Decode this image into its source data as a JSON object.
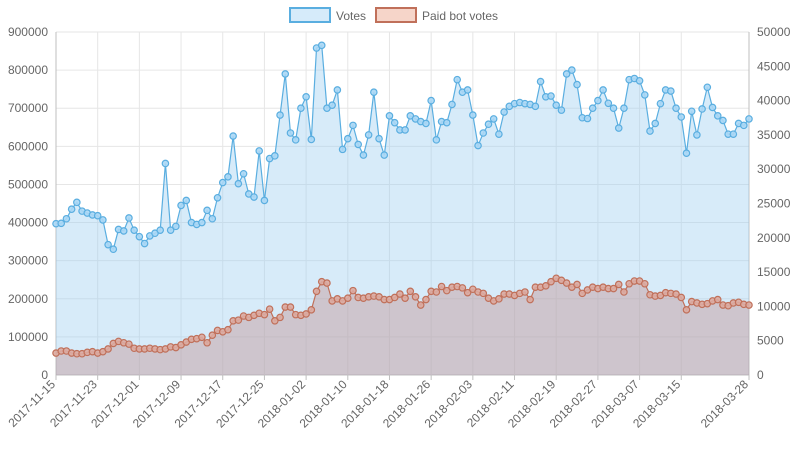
{
  "chart_data": {
    "type": "line",
    "legend": {
      "placement": "top-center",
      "items": [
        {
          "label": "Votes",
          "fill": "#d6ebfa",
          "stroke": "#5aaee0"
        },
        {
          "label": "Paid bot votes",
          "fill": "#f6d5c9",
          "stroke": "#c0705a"
        }
      ]
    },
    "x_tick_labels": [
      "2017-11-15",
      "2017-11-23",
      "2017-12-01",
      "2017-12-09",
      "2017-12-17",
      "2017-12-25",
      "2018-01-02",
      "2018-01-10",
      "2018-01-18",
      "2018-01-26",
      "2018-02-03",
      "2018-02-11",
      "2018-02-19",
      "2018-02-27",
      "2018-03-07",
      "2018-03-15",
      "2018-03-28"
    ],
    "x_tick_positions": [
      0,
      8,
      16,
      24,
      32,
      40,
      48,
      56,
      64,
      72,
      80,
      88,
      96,
      104,
      112,
      120,
      133
    ],
    "y_left": {
      "min": 0,
      "max": 900000,
      "ticks": [
        "0",
        "100000",
        "200000",
        "300000",
        "400000",
        "500000",
        "600000",
        "700000",
        "800000",
        "900000"
      ]
    },
    "y_right": {
      "min": 0,
      "max": 50000,
      "ticks": [
        "0",
        "5000",
        "10000",
        "15000",
        "20000",
        "25000",
        "30000",
        "35000",
        "40000",
        "45000",
        "50000"
      ]
    },
    "grid": true,
    "series": [
      {
        "name": "Votes",
        "axis": "left",
        "color": "#5aaee0",
        "fill": "rgba(155,205,240,0.4)",
        "values": [
          397000,
          398000,
          410000,
          435000,
          453000,
          430000,
          425000,
          420000,
          418000,
          407000,
          342000,
          330000,
          382000,
          378000,
          412000,
          380000,
          363000,
          345000,
          365000,
          372000,
          380000,
          555000,
          380000,
          390000,
          445000,
          458000,
          400000,
          395000,
          400000,
          432000,
          410000,
          465000,
          505000,
          520000,
          627000,
          502000,
          528000,
          475000,
          467000,
          588000,
          458000,
          568000,
          575000,
          682000,
          790000,
          635000,
          617000,
          700000,
          730000,
          618000,
          858000,
          865000,
          700000,
          708000,
          748000,
          592000,
          620000,
          655000,
          605000,
          577000,
          630000,
          742000,
          620000,
          577000,
          680000,
          662000,
          643000,
          643000,
          680000,
          672000,
          665000,
          660000,
          720000,
          617000,
          665000,
          662000,
          710000,
          775000,
          742000,
          748000,
          682000,
          602000,
          635000,
          658000,
          672000,
          632000,
          690000,
          705000,
          712000,
          715000,
          712000,
          710000,
          705000,
          770000,
          730000,
          732000,
          708000,
          695000,
          790000,
          800000,
          762000,
          675000,
          673000,
          700000,
          720000,
          748000,
          713000,
          700000,
          648000,
          700000,
          775000,
          778000,
          772000,
          735000,
          640000,
          660000,
          712000,
          748000,
          745000,
          700000,
          677000,
          582000,
          692000,
          630000,
          698000,
          755000,
          702000,
          680000,
          668000,
          632000,
          632000,
          660000,
          655000,
          672000
        ]
      },
      {
        "name": "Paid bot votes",
        "axis": "right",
        "color": "#c0705a",
        "fill": "rgba(195,150,150,0.45)",
        "values": [
          3200,
          3500,
          3500,
          3200,
          3100,
          3100,
          3300,
          3400,
          3200,
          3400,
          3800,
          4600,
          4900,
          4700,
          4500,
          3900,
          3800,
          3800,
          3900,
          3800,
          3700,
          3800,
          4100,
          4000,
          4400,
          4800,
          5200,
          5300,
          5500,
          4700,
          5800,
          6500,
          6300,
          6600,
          7900,
          8000,
          8600,
          8400,
          8700,
          9000,
          8800,
          9600,
          7900,
          8400,
          9900,
          9900,
          8800,
          8700,
          8900,
          9500,
          12200,
          13600,
          13400,
          10800,
          11100,
          10800,
          11200,
          12300,
          11300,
          11200,
          11400,
          11500,
          11400,
          11000,
          11000,
          11300,
          11800,
          11200,
          12200,
          11400,
          10200,
          11000,
          12200,
          12100,
          12900,
          12300,
          12800,
          12900,
          12700,
          12000,
          12500,
          12100,
          11900,
          11200,
          10800,
          11100,
          11800,
          11800,
          11600,
          11900,
          12100,
          11000,
          12800,
          12800,
          13000,
          13600,
          14100,
          13800,
          13400,
          12800,
          13200,
          11900,
          12400,
          12800,
          12600,
          12800,
          12600,
          12600,
          13200,
          12100,
          13300,
          13700,
          13700,
          13300,
          11700,
          11500,
          11600,
          12000,
          11900,
          11800,
          11300,
          9500,
          10700,
          10500,
          10300,
          10400,
          10800,
          11000,
          10200,
          10100,
          10500,
          10600,
          10300,
          10200
        ]
      }
    ]
  }
}
